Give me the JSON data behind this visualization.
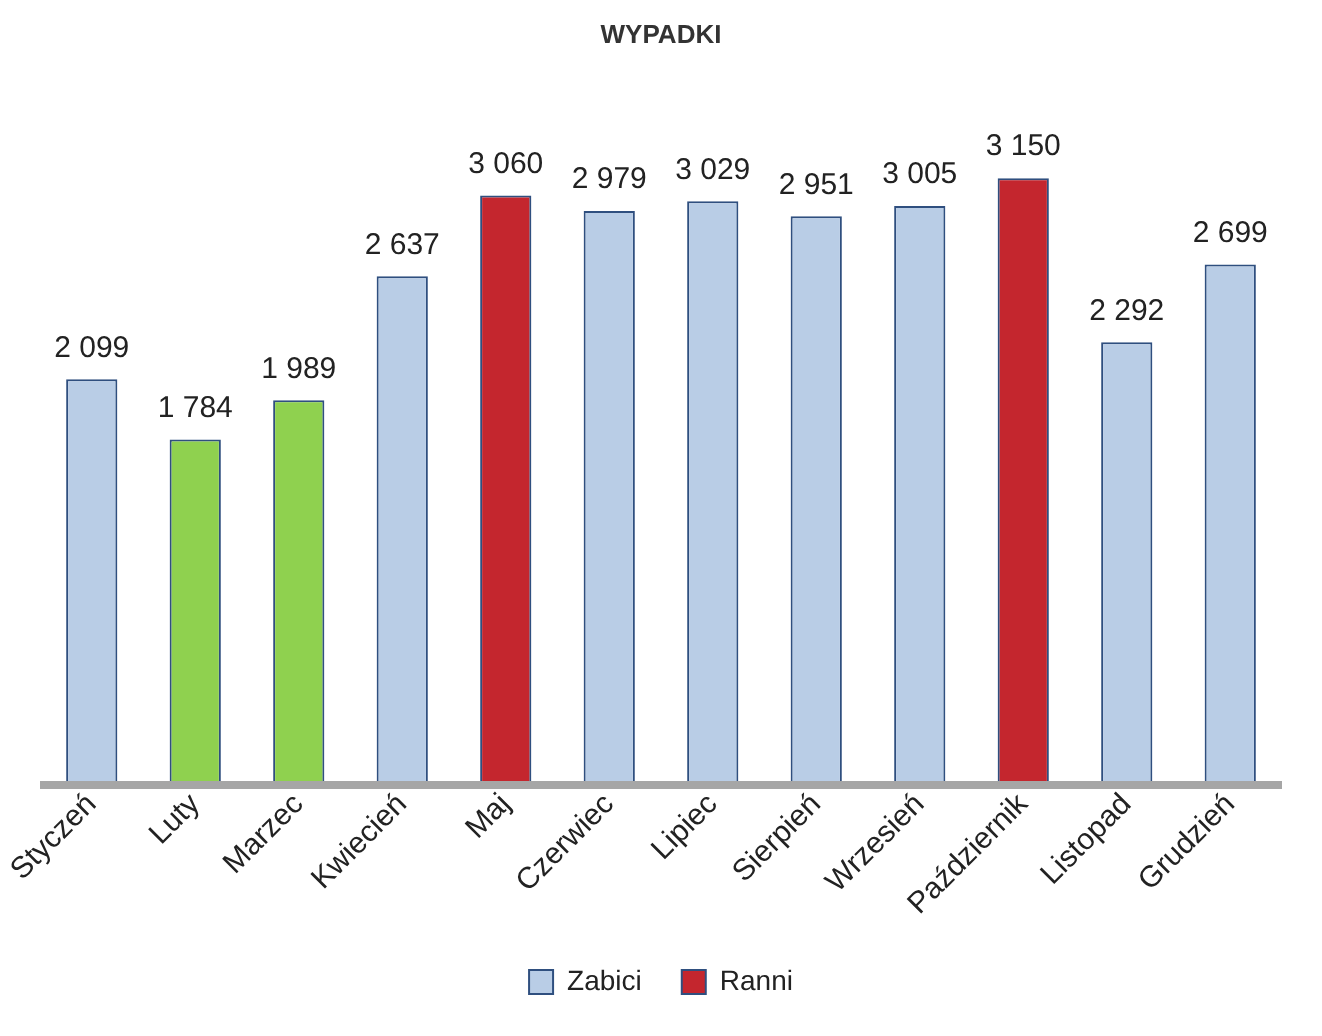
{
  "chart_data": {
    "type": "bar",
    "title": "WYPADKI",
    "categories": [
      "Styczeń",
      "Luty",
      "Marzec",
      "Kwiecień",
      "Maj",
      "Czerwiec",
      "Lipiec",
      "Sierpień",
      "Wrzesień",
      "Październik",
      "Listopad",
      "Grudzień"
    ],
    "series": [
      {
        "name": "Zabici",
        "color": "#b9cde6",
        "values": [
          2099,
          null,
          null,
          2637,
          null,
          2979,
          3029,
          2951,
          3005,
          null,
          2292,
          2699
        ],
        "value_labels": [
          "2 099",
          null,
          null,
          "2 637",
          null,
          "2 979",
          "3 029",
          "2 951",
          "3 005",
          null,
          "2 292",
          "2 699"
        ]
      },
      {
        "name": "Ranni",
        "color": "#c4262e",
        "values": [
          null,
          null,
          null,
          null,
          3060,
          null,
          null,
          null,
          null,
          3150,
          null,
          null
        ],
        "value_labels": [
          null,
          null,
          null,
          null,
          "3 060",
          null,
          null,
          null,
          null,
          "3 150",
          null,
          null
        ]
      },
      {
        "color": "#8fd14f",
        "values": [
          null,
          1784,
          1989,
          null,
          null,
          null,
          null,
          null,
          null,
          null,
          null,
          null
        ],
        "value_labels": [
          null,
          "1 784",
          "1 989",
          null,
          null,
          null,
          null,
          null,
          null,
          null,
          null,
          null
        ]
      }
    ],
    "legend": "bottom",
    "grid": false
  }
}
